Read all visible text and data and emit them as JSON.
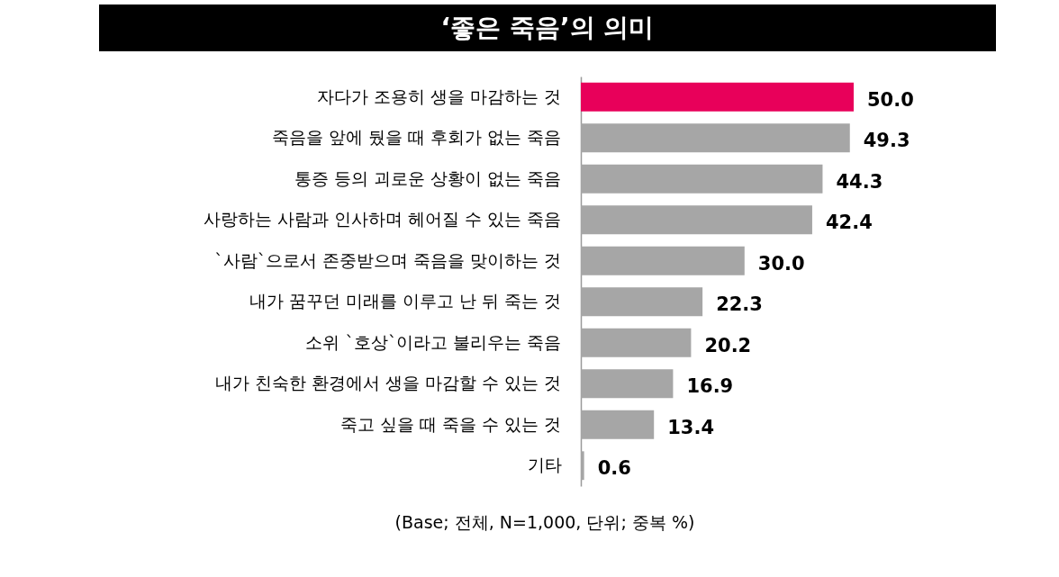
{
  "chart_data": {
    "type": "bar",
    "orientation": "horizontal",
    "title": "‘좋은 죽음’의 의미",
    "categories": [
      "자다가 조용히 생을 마감하는 것",
      "죽음을 앞에 뒀을 때 후회가 없는 죽음",
      "통증 등의 괴로운 상황이 없는 죽음",
      "사랑하는 사람과 인사하며 헤어질 수 있는 죽음",
      "`사람`으로서 존중받으며 죽음을 맞이하는 것",
      "내가 꿈꾸던 미래를 이루고 난 뒤 죽는 것",
      "소위 `호상`이라고 불리우는 죽음",
      "내가 친숙한 환경에서 생을 마감할 수 있는 것",
      "죽고 싶을 때 죽을 수 있는 것",
      "기타"
    ],
    "values": [
      50.0,
      49.3,
      44.3,
      42.4,
      30.0,
      22.3,
      20.2,
      16.9,
      13.4,
      0.6
    ],
    "colors": [
      "#e8005a",
      "#a6a6a6",
      "#a6a6a6",
      "#a6a6a6",
      "#a6a6a6",
      "#a6a6a6",
      "#a6a6a6",
      "#a6a6a6",
      "#a6a6a6",
      "#a6a6a6"
    ],
    "value_labels": [
      "50.0",
      "49.3",
      "44.3",
      "42.4",
      "30.0",
      "22.3",
      "20.2",
      "16.9",
      "13.4",
      "0.6"
    ],
    "tick_labels": "y",
    "annotations": [
      "(Base; 전체, N=1,000, 단위; 중복 %)"
    ]
  }
}
